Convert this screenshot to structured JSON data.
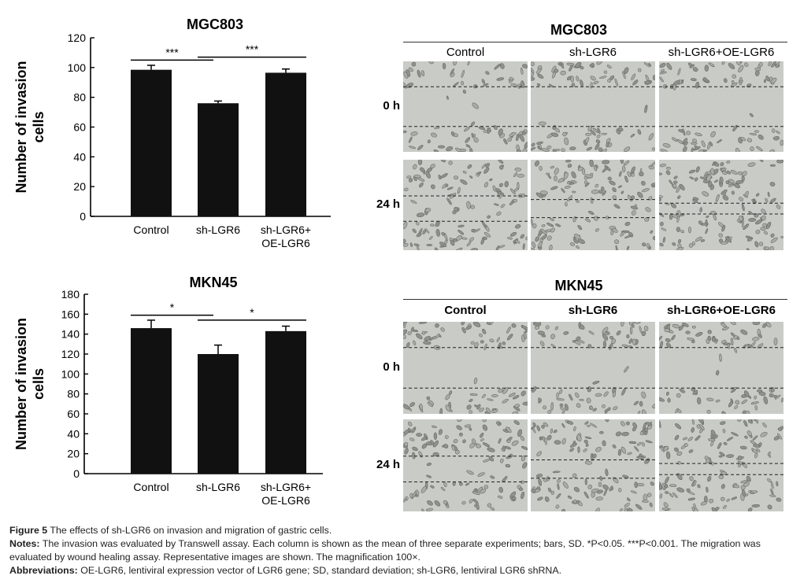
{
  "charts": [
    {
      "title": "MGC803",
      "ylabel": "Number of invasion cells",
      "ylim": [
        0,
        120
      ],
      "ytick_step": 20,
      "yticks": [
        "0",
        "20",
        "40",
        "60",
        "80",
        "100",
        "120"
      ],
      "categories": [
        "Control",
        "sh-LGR6",
        "sh-LGR6+\nOE-LGR6"
      ],
      "values": [
        98.5,
        76,
        96.5
      ],
      "errors": [
        3,
        1.5,
        2.5
      ],
      "annotations": [
        {
          "from": 0,
          "to": 1,
          "y": 105,
          "label": "***"
        },
        {
          "from": 1,
          "to": 2,
          "y": 107,
          "label": "***"
        }
      ]
    },
    {
      "title": "MKN45",
      "ylabel": "Number of invasion cells",
      "ylim": [
        0,
        180
      ],
      "ytick_step": 20,
      "yticks": [
        "0",
        "20",
        "40",
        "60",
        "80",
        "100",
        "120",
        "140",
        "160",
        "180"
      ],
      "categories": [
        "Control",
        "sh-LGR6",
        "sh-LGR6+\nOE-LGR6"
      ],
      "values": [
        146,
        120,
        143
      ],
      "errors": [
        8,
        9,
        5
      ],
      "annotations": [
        {
          "from": 0,
          "to": 1,
          "y": 159,
          "label": "*"
        },
        {
          "from": 1,
          "to": 2,
          "y": 154,
          "label": "*"
        }
      ]
    }
  ],
  "chart_data": [
    {
      "type": "bar",
      "title": "MGC803",
      "ylabel": "Number of invasion cells",
      "categories": [
        "Control",
        "sh-LGR6",
        "sh-LGR6+ OE-LGR6"
      ],
      "values": [
        98.5,
        76,
        96.5
      ],
      "errors": [
        3,
        1.5,
        2.5
      ],
      "ylim": [
        0,
        120
      ]
    },
    {
      "type": "bar",
      "title": "MKN45",
      "ylabel": "Number of invasion cells",
      "categories": [
        "Control",
        "sh-LGR6",
        "sh-LGR6+ OE-LGR6"
      ],
      "values": [
        146,
        120,
        143
      ],
      "errors": [
        8,
        9,
        5
      ],
      "ylim": [
        0,
        180
      ]
    }
  ],
  "wound_panels": [
    {
      "title": "MGC803",
      "columns": [
        "Control",
        "sh-LGR6",
        "sh-LGR6+OE-LGR6"
      ],
      "rows": [
        "0 h",
        "24 h"
      ],
      "bold_columns": false
    },
    {
      "title": "MKN45",
      "columns": [
        "Control",
        "sh-LGR6",
        "sh-LGR6+OE-LGR6"
      ],
      "rows": [
        "0 h",
        "24 h"
      ],
      "bold_columns": true
    }
  ],
  "caption": {
    "figure_label": "Figure 5",
    "figure_text": "The effects of sh-LGR6 on invasion and migration of gastric cells.",
    "notes_label": "Notes:",
    "notes_text": "The invasion was evaluated by Transwell assay. Each column is shown as the mean of three separate experiments; bars, SD. *P<0.05. ***P<0.001. The migration was evaluated by wound healing assay. Representative images are shown. The magnification 100×.",
    "abbr_label": "Abbreviations:",
    "abbr_text": "OE-LGR6, lentiviral expression vector of LGR6 gene; SD, standard deviation; sh-LGR6, lentiviral LGR6 shRNA."
  }
}
